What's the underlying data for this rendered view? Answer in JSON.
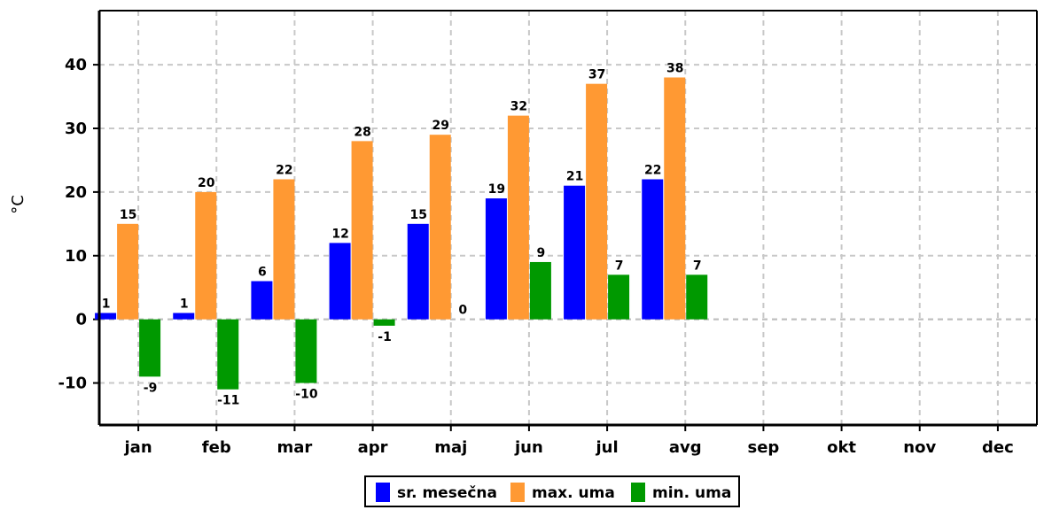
{
  "chart_data": {
    "type": "bar",
    "ylabel": "°C",
    "categories": [
      "jan",
      "feb",
      "mar",
      "apr",
      "maj",
      "jun",
      "jul",
      "avg",
      "sep",
      "okt",
      "nov",
      "dec"
    ],
    "series": [
      {
        "name": "sr. mesečna",
        "color": "#0000ff",
        "values": [
          1,
          1,
          6,
          12,
          15,
          19,
          21,
          22,
          null,
          null,
          null,
          null
        ]
      },
      {
        "name": "max. uma",
        "color": "#ff9933",
        "values": [
          15,
          20,
          22,
          28,
          29,
          32,
          37,
          38,
          null,
          null,
          null,
          null
        ]
      },
      {
        "name": "min. uma",
        "color": "#009900",
        "values": [
          -9,
          -11,
          -10,
          -1,
          0,
          9,
          7,
          7,
          null,
          null,
          null,
          null
        ]
      }
    ],
    "yticks": [
      -10,
      0,
      10,
      20,
      30,
      40
    ],
    "ylim": [
      -16.6,
      48.5
    ],
    "grid": true,
    "legend_position": "bottom-center"
  }
}
